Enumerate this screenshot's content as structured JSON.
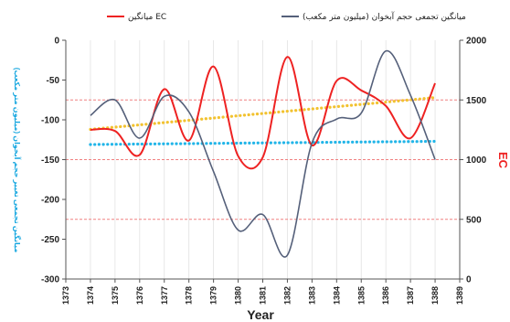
{
  "chart_data": {
    "type": "line",
    "xlabel": "Year",
    "y_left_label": "میانگین تجمعی تغییر حجم آبخوان (میلیون متر مکعب)",
    "y_right_label": "EC",
    "x_range": [
      1373,
      1389
    ],
    "x_ticks": [
      "1373",
      "1374",
      "1375",
      "1376",
      "1377",
      "1378",
      "1379",
      "1380",
      "1381",
      "1382",
      "1383",
      "1384",
      "1385",
      "1386",
      "1387",
      "1388",
      "1389"
    ],
    "y_left_range": [
      -300,
      0
    ],
    "y_left_ticks": [
      "0",
      "-50",
      "-100",
      "-150",
      "-200",
      "-250",
      "-300"
    ],
    "y_right_range": [
      0,
      2000
    ],
    "y_right_ticks": [
      "2000",
      "1500",
      "1000",
      "500",
      "0"
    ],
    "series": [
      {
        "name": "میانگین EC",
        "axis": "right",
        "color": "#ee2222",
        "x": [
          1374,
          1375,
          1376,
          1377,
          1378,
          1379,
          1380,
          1381,
          1382,
          1383,
          1384,
          1385,
          1386,
          1387,
          1388
        ],
        "y": [
          1250,
          1240,
          1040,
          1590,
          1160,
          1780,
          1030,
          1020,
          1860,
          1120,
          1660,
          1580,
          1450,
          1180,
          1640
        ]
      },
      {
        "name": "میانگین تجمعی حجم آبخوان (میلیون متر مکعب)",
        "axis": "right",
        "color": "#55607a",
        "x": [
          1374,
          1375,
          1376,
          1377,
          1378,
          1379,
          1380,
          1381,
          1382,
          1383,
          1384,
          1385,
          1386,
          1387,
          1388
        ],
        "y": [
          1370,
          1500,
          1180,
          1530,
          1400,
          900,
          410,
          540,
          200,
          1140,
          1340,
          1390,
          1910,
          1540,
          1000
        ]
      },
      {
        "color": "#f2c230",
        "axis": "left",
        "style": "dotted-trend",
        "x": [
          1374,
          1388
        ],
        "y": [
          -112,
          -72
        ]
      },
      {
        "color": "#22b5e8",
        "axis": "left",
        "style": "dotted-trend",
        "x": [
          1374,
          1388
        ],
        "y": [
          -131,
          -127
        ]
      }
    ],
    "reference_lines_left": [
      -75,
      -150,
      -225
    ],
    "grid": true,
    "legend_position": "top"
  }
}
